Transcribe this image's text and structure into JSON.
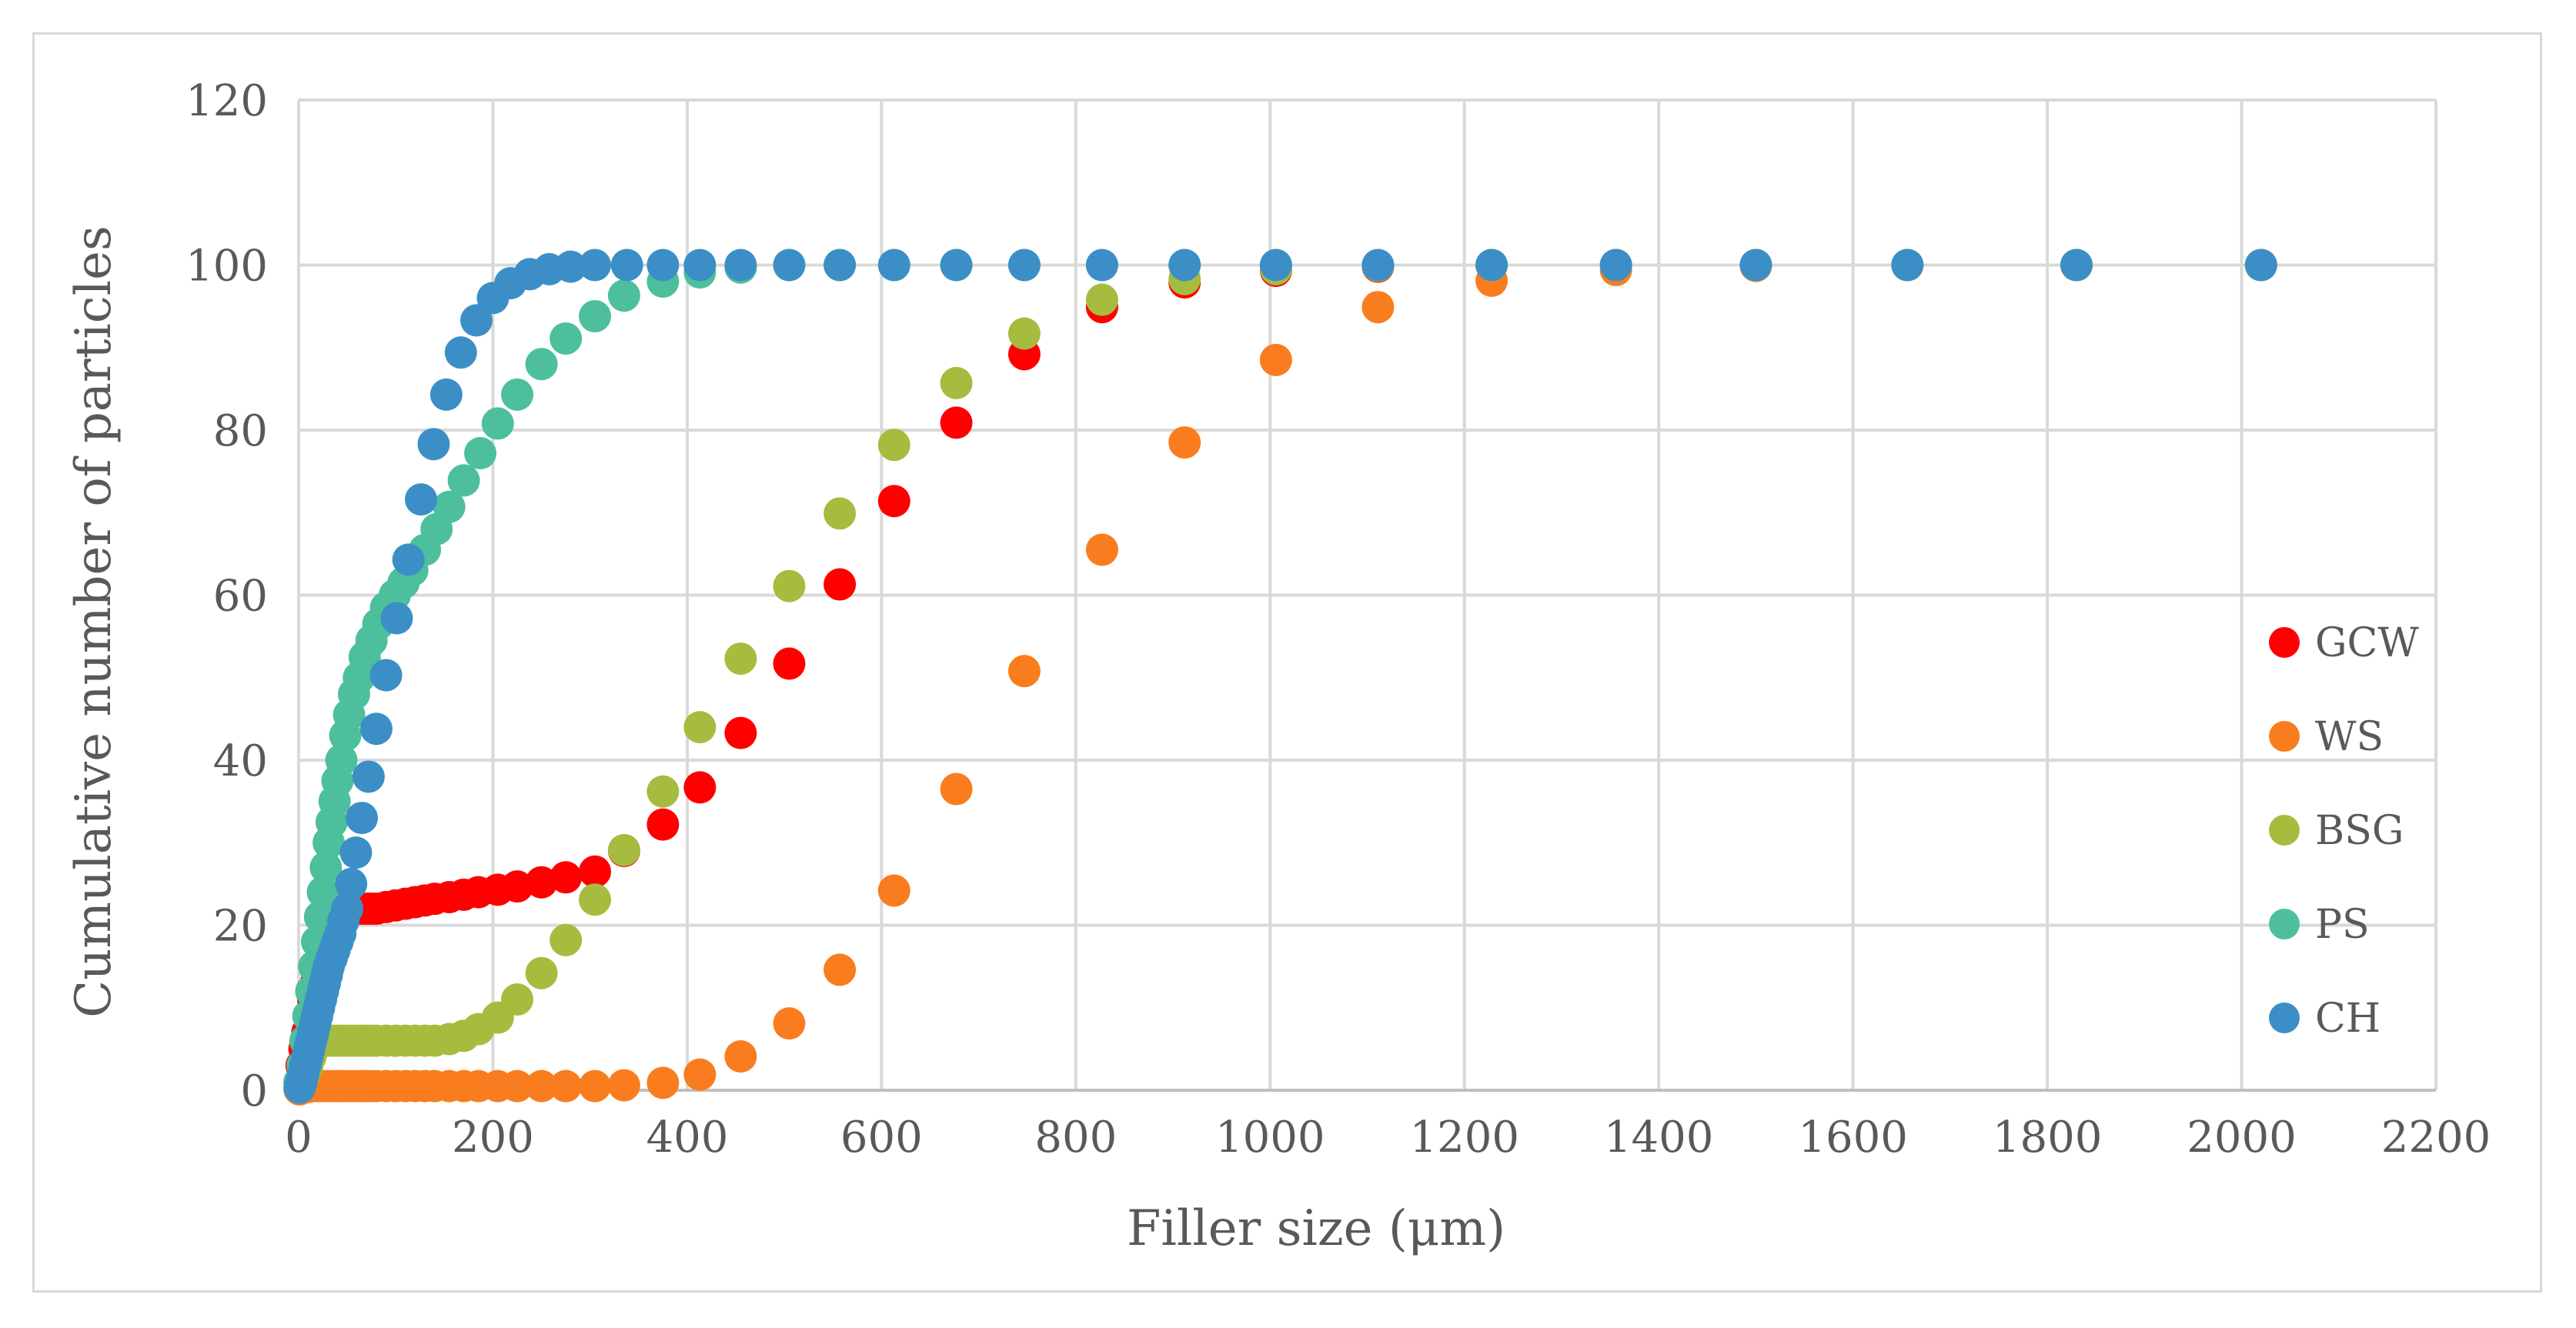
{
  "chart_data": {
    "type": "scatter",
    "title": "",
    "xlabel": "Filler size (μm)",
    "ylabel": "Cumulative number of particles",
    "xlim": [
      0,
      2200
    ],
    "ylim": [
      0,
      120
    ],
    "xticks": [
      "0",
      "200",
      "400",
      "600",
      "800",
      "1000",
      "1200",
      "1400",
      "1600",
      "1800",
      "2000",
      "2200"
    ],
    "yticks": [
      "0",
      "20",
      "40",
      "60",
      "80",
      "100",
      "120"
    ],
    "grid": true,
    "legend_position": "right",
    "series": [
      {
        "name": "GCW",
        "color": "#ff0000",
        "points": [
          [
            1,
            1
          ],
          [
            3,
            3
          ],
          [
            6,
            5
          ],
          [
            9,
            7
          ],
          [
            12,
            9
          ],
          [
            15,
            11
          ],
          [
            18,
            13
          ],
          [
            21,
            15
          ],
          [
            24,
            17
          ],
          [
            27,
            19
          ],
          [
            30,
            20.5
          ],
          [
            35,
            21.5
          ],
          [
            40,
            22
          ],
          [
            45,
            22
          ],
          [
            50,
            22
          ],
          [
            55,
            22
          ],
          [
            60,
            22
          ],
          [
            65,
            22
          ],
          [
            70,
            22
          ],
          [
            75,
            22
          ],
          [
            80,
            22
          ],
          [
            90,
            22.2
          ],
          [
            100,
            22.4
          ],
          [
            110,
            22.6
          ],
          [
            120,
            22.8
          ],
          [
            130,
            23
          ],
          [
            140,
            23.2
          ],
          [
            155,
            23.4
          ],
          [
            170,
            23.7
          ],
          [
            185,
            24
          ],
          [
            205,
            24.3
          ],
          [
            225,
            24.7
          ],
          [
            250,
            25.2
          ],
          [
            275,
            25.8
          ],
          [
            305,
            26.5
          ],
          [
            335,
            29
          ],
          [
            375,
            32.2
          ],
          [
            413,
            36.7
          ],
          [
            455,
            43.3
          ],
          [
            505,
            51.7
          ],
          [
            557,
            61.3
          ],
          [
            613,
            71.4
          ],
          [
            677,
            80.9
          ],
          [
            747,
            89.2
          ],
          [
            827,
            94.9
          ],
          [
            912,
            97.9
          ],
          [
            1006,
            99.3
          ],
          [
            1111,
            99.8
          ],
          [
            1228,
            100
          ],
          [
            1356,
            100
          ],
          [
            1500,
            100
          ],
          [
            1656,
            100
          ],
          [
            1830,
            100
          ],
          [
            2020,
            100
          ]
        ]
      },
      {
        "name": "WS",
        "color": "#f97d1e",
        "points": [
          [
            1,
            0.1
          ],
          [
            5,
            0.3
          ],
          [
            10,
            0.4
          ],
          [
            15,
            0.5
          ],
          [
            20,
            0.5
          ],
          [
            25,
            0.5
          ],
          [
            30,
            0.5
          ],
          [
            35,
            0.5
          ],
          [
            40,
            0.5
          ],
          [
            45,
            0.5
          ],
          [
            50,
            0.5
          ],
          [
            55,
            0.5
          ],
          [
            60,
            0.5
          ],
          [
            65,
            0.5
          ],
          [
            70,
            0.5
          ],
          [
            75,
            0.5
          ],
          [
            80,
            0.5
          ],
          [
            90,
            0.5
          ],
          [
            100,
            0.5
          ],
          [
            110,
            0.5
          ],
          [
            120,
            0.5
          ],
          [
            130,
            0.5
          ],
          [
            140,
            0.5
          ],
          [
            155,
            0.5
          ],
          [
            170,
            0.5
          ],
          [
            185,
            0.5
          ],
          [
            205,
            0.5
          ],
          [
            225,
            0.5
          ],
          [
            250,
            0.5
          ],
          [
            275,
            0.5
          ],
          [
            305,
            0.5
          ],
          [
            335,
            0.6
          ],
          [
            375,
            0.9
          ],
          [
            413,
            1.9
          ],
          [
            455,
            4.1
          ],
          [
            505,
            8.1
          ],
          [
            557,
            14.6
          ],
          [
            613,
            24.2
          ],
          [
            677,
            36.5
          ],
          [
            747,
            50.8
          ],
          [
            827,
            65.5
          ],
          [
            912,
            78.5
          ],
          [
            1006,
            88.5
          ],
          [
            1111,
            94.9
          ],
          [
            1228,
            98.1
          ],
          [
            1356,
            99.4
          ],
          [
            1500,
            99.9
          ],
          [
            1656,
            100
          ],
          [
            1830,
            100
          ],
          [
            2020,
            100
          ]
        ]
      },
      {
        "name": "BSG",
        "color": "#a5bc3f",
        "points": [
          [
            1,
            0.5
          ],
          [
            3,
            1
          ],
          [
            6,
            2
          ],
          [
            9,
            3
          ],
          [
            12,
            4
          ],
          [
            15,
            5
          ],
          [
            18,
            5.5
          ],
          [
            21,
            6
          ],
          [
            24,
            6
          ],
          [
            27,
            6
          ],
          [
            30,
            6
          ],
          [
            35,
            6
          ],
          [
            40,
            6
          ],
          [
            45,
            6
          ],
          [
            50,
            6
          ],
          [
            55,
            6
          ],
          [
            60,
            6
          ],
          [
            65,
            6
          ],
          [
            70,
            6
          ],
          [
            75,
            6
          ],
          [
            80,
            6
          ],
          [
            90,
            6
          ],
          [
            100,
            6
          ],
          [
            110,
            6
          ],
          [
            120,
            6
          ],
          [
            130,
            6
          ],
          [
            140,
            6
          ],
          [
            155,
            6.2
          ],
          [
            170,
            6.6
          ],
          [
            185,
            7.4
          ],
          [
            205,
            8.8
          ],
          [
            225,
            11
          ],
          [
            250,
            14.2
          ],
          [
            275,
            18.2
          ],
          [
            305,
            23.1
          ],
          [
            335,
            29.1
          ],
          [
            375,
            36.2
          ],
          [
            413,
            44
          ],
          [
            455,
            52.3
          ],
          [
            505,
            61.1
          ],
          [
            557,
            69.9
          ],
          [
            613,
            78.2
          ],
          [
            677,
            85.7
          ],
          [
            747,
            91.7
          ],
          [
            827,
            95.8
          ],
          [
            912,
            98.3
          ],
          [
            1006,
            99.5
          ],
          [
            1111,
            99.9
          ],
          [
            1228,
            100
          ],
          [
            1356,
            100
          ],
          [
            1500,
            100
          ],
          [
            1656,
            100
          ],
          [
            1830,
            100
          ],
          [
            2020,
            100
          ]
        ]
      },
      {
        "name": "PS",
        "color": "#4dbf9c",
        "points": [
          [
            1,
            1
          ],
          [
            4,
            3
          ],
          [
            7,
            6
          ],
          [
            10,
            9
          ],
          [
            13,
            12
          ],
          [
            16,
            15
          ],
          [
            19,
            18
          ],
          [
            22,
            21
          ],
          [
            25,
            24
          ],
          [
            28,
            27
          ],
          [
            31,
            30
          ],
          [
            34,
            32.5
          ],
          [
            37,
            35
          ],
          [
            40,
            37.5
          ],
          [
            44,
            40
          ],
          [
            48,
            43
          ],
          [
            52,
            45.5
          ],
          [
            57,
            48
          ],
          [
            62,
            50
          ],
          [
            68,
            52.5
          ],
          [
            75,
            54.5
          ],
          [
            82,
            56.5
          ],
          [
            90,
            58.5
          ],
          [
            99,
            60
          ],
          [
            108,
            61.5
          ],
          [
            117,
            63
          ],
          [
            130,
            65.5
          ],
          [
            142,
            68
          ],
          [
            155,
            70.7
          ],
          [
            170,
            73.9
          ],
          [
            187,
            77.2
          ],
          [
            205,
            80.8
          ],
          [
            225,
            84.3
          ],
          [
            250,
            88
          ],
          [
            275,
            91.1
          ],
          [
            305,
            93.8
          ],
          [
            335,
            96.3
          ],
          [
            375,
            98
          ],
          [
            413,
            99.1
          ],
          [
            455,
            99.7
          ],
          [
            505,
            100
          ],
          [
            557,
            100
          ],
          [
            613,
            100
          ],
          [
            677,
            100
          ],
          [
            747,
            100
          ],
          [
            827,
            100
          ],
          [
            912,
            100
          ],
          [
            1006,
            100
          ],
          [
            1111,
            100
          ],
          [
            1228,
            100
          ],
          [
            1356,
            100
          ],
          [
            1500,
            100
          ],
          [
            1656,
            100
          ],
          [
            1830,
            100
          ],
          [
            2020,
            100
          ]
        ]
      },
      {
        "name": "CH",
        "color": "#3c8fc6",
        "points": [
          [
            1,
            0.3
          ],
          [
            3,
            1
          ],
          [
            5,
            2
          ],
          [
            7,
            3
          ],
          [
            9,
            4
          ],
          [
            11,
            5
          ],
          [
            13,
            6
          ],
          [
            15,
            7
          ],
          [
            17,
            8
          ],
          [
            19,
            9
          ],
          [
            21,
            10
          ],
          [
            23,
            11
          ],
          [
            25,
            12
          ],
          [
            27,
            13
          ],
          [
            29,
            14
          ],
          [
            31,
            15
          ],
          [
            34,
            16
          ],
          [
            37,
            17
          ],
          [
            40,
            18
          ],
          [
            43,
            19
          ],
          [
            46,
            20.5
          ],
          [
            50,
            22
          ],
          [
            54,
            25
          ],
          [
            59,
            28.8
          ],
          [
            65,
            33
          ],
          [
            72,
            38
          ],
          [
            80,
            43.8
          ],
          [
            90,
            50.3
          ],
          [
            101,
            57.2
          ],
          [
            113,
            64.3
          ],
          [
            126,
            71.6
          ],
          [
            139,
            78.3
          ],
          [
            152,
            84.3
          ],
          [
            167,
            89.4
          ],
          [
            183,
            93.3
          ],
          [
            200,
            96
          ],
          [
            218,
            97.8
          ],
          [
            238,
            98.9
          ],
          [
            258,
            99.5
          ],
          [
            280,
            99.8
          ],
          [
            305,
            100
          ],
          [
            338,
            100
          ],
          [
            375,
            100
          ],
          [
            413,
            100
          ],
          [
            455,
            100
          ],
          [
            505,
            100
          ],
          [
            557,
            100
          ],
          [
            613,
            100
          ],
          [
            677,
            100
          ],
          [
            747,
            100
          ],
          [
            827,
            100
          ],
          [
            912,
            100
          ],
          [
            1006,
            100
          ],
          [
            1111,
            100
          ],
          [
            1228,
            100
          ],
          [
            1356,
            100
          ],
          [
            1500,
            100
          ],
          [
            1656,
            100
          ],
          [
            1830,
            100
          ],
          [
            2020,
            100
          ]
        ]
      }
    ]
  }
}
